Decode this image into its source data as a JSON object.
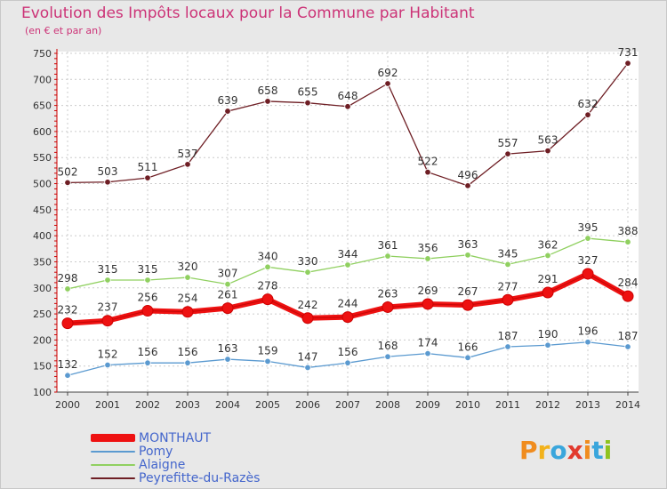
{
  "header": {
    "title": "Evolution des Impôts locaux pour la Commune par Habitant",
    "subtitle": "(en € et par an)"
  },
  "logo": {
    "text": "Proxiti",
    "colors": [
      "#f08c1e",
      "#f2b21b",
      "#3aa6dc",
      "#e23a2e",
      "#f08c1e",
      "#3aa6dc",
      "#8fc31f"
    ]
  },
  "chart_data": {
    "type": "line",
    "title": "Evolution des Impôts locaux pour la Commune par Habitant",
    "subtitle": "(en € et par an)",
    "xlabel": "",
    "ylabel": "",
    "ylim": [
      100,
      750
    ],
    "yticks": [
      100,
      150,
      200,
      250,
      300,
      350,
      400,
      450,
      500,
      550,
      600,
      650,
      700,
      750
    ],
    "grid": true,
    "legend_position": "bottom-left",
    "categories": [
      "2000",
      "2001",
      "2002",
      "2003",
      "2004",
      "2005",
      "2006",
      "2007",
      "2008",
      "2009",
      "2010",
      "2011",
      "2012",
      "2013",
      "2014"
    ],
    "series": [
      {
        "name": "Peyrefitte-du-Razès",
        "color": "#6e1e24",
        "values": [
          502,
          503,
          511,
          537,
          639,
          658,
          655,
          648,
          692,
          522,
          496,
          557,
          563,
          632,
          731
        ]
      },
      {
        "name": "Alaigne",
        "color": "#90d060",
        "values": [
          298,
          315,
          315,
          320,
          307,
          340,
          330,
          344,
          361,
          356,
          363,
          345,
          362,
          395,
          388
        ]
      },
      {
        "name": "Pomy",
        "color": "#5b9ad0",
        "values": [
          132,
          152,
          156,
          156,
          163,
          159,
          147,
          156,
          168,
          174,
          166,
          187,
          190,
          196,
          187
        ]
      },
      {
        "name": "MONTHAUT",
        "color": "#ee1111",
        "values": [
          232,
          237,
          256,
          254,
          261,
          278,
          242,
          244,
          263,
          269,
          267,
          277,
          291,
          327,
          284
        ]
      }
    ],
    "legend_order": [
      "MONTHAUT",
      "Pomy",
      "Alaigne",
      "Peyrefitte-du-Razès"
    ]
  }
}
